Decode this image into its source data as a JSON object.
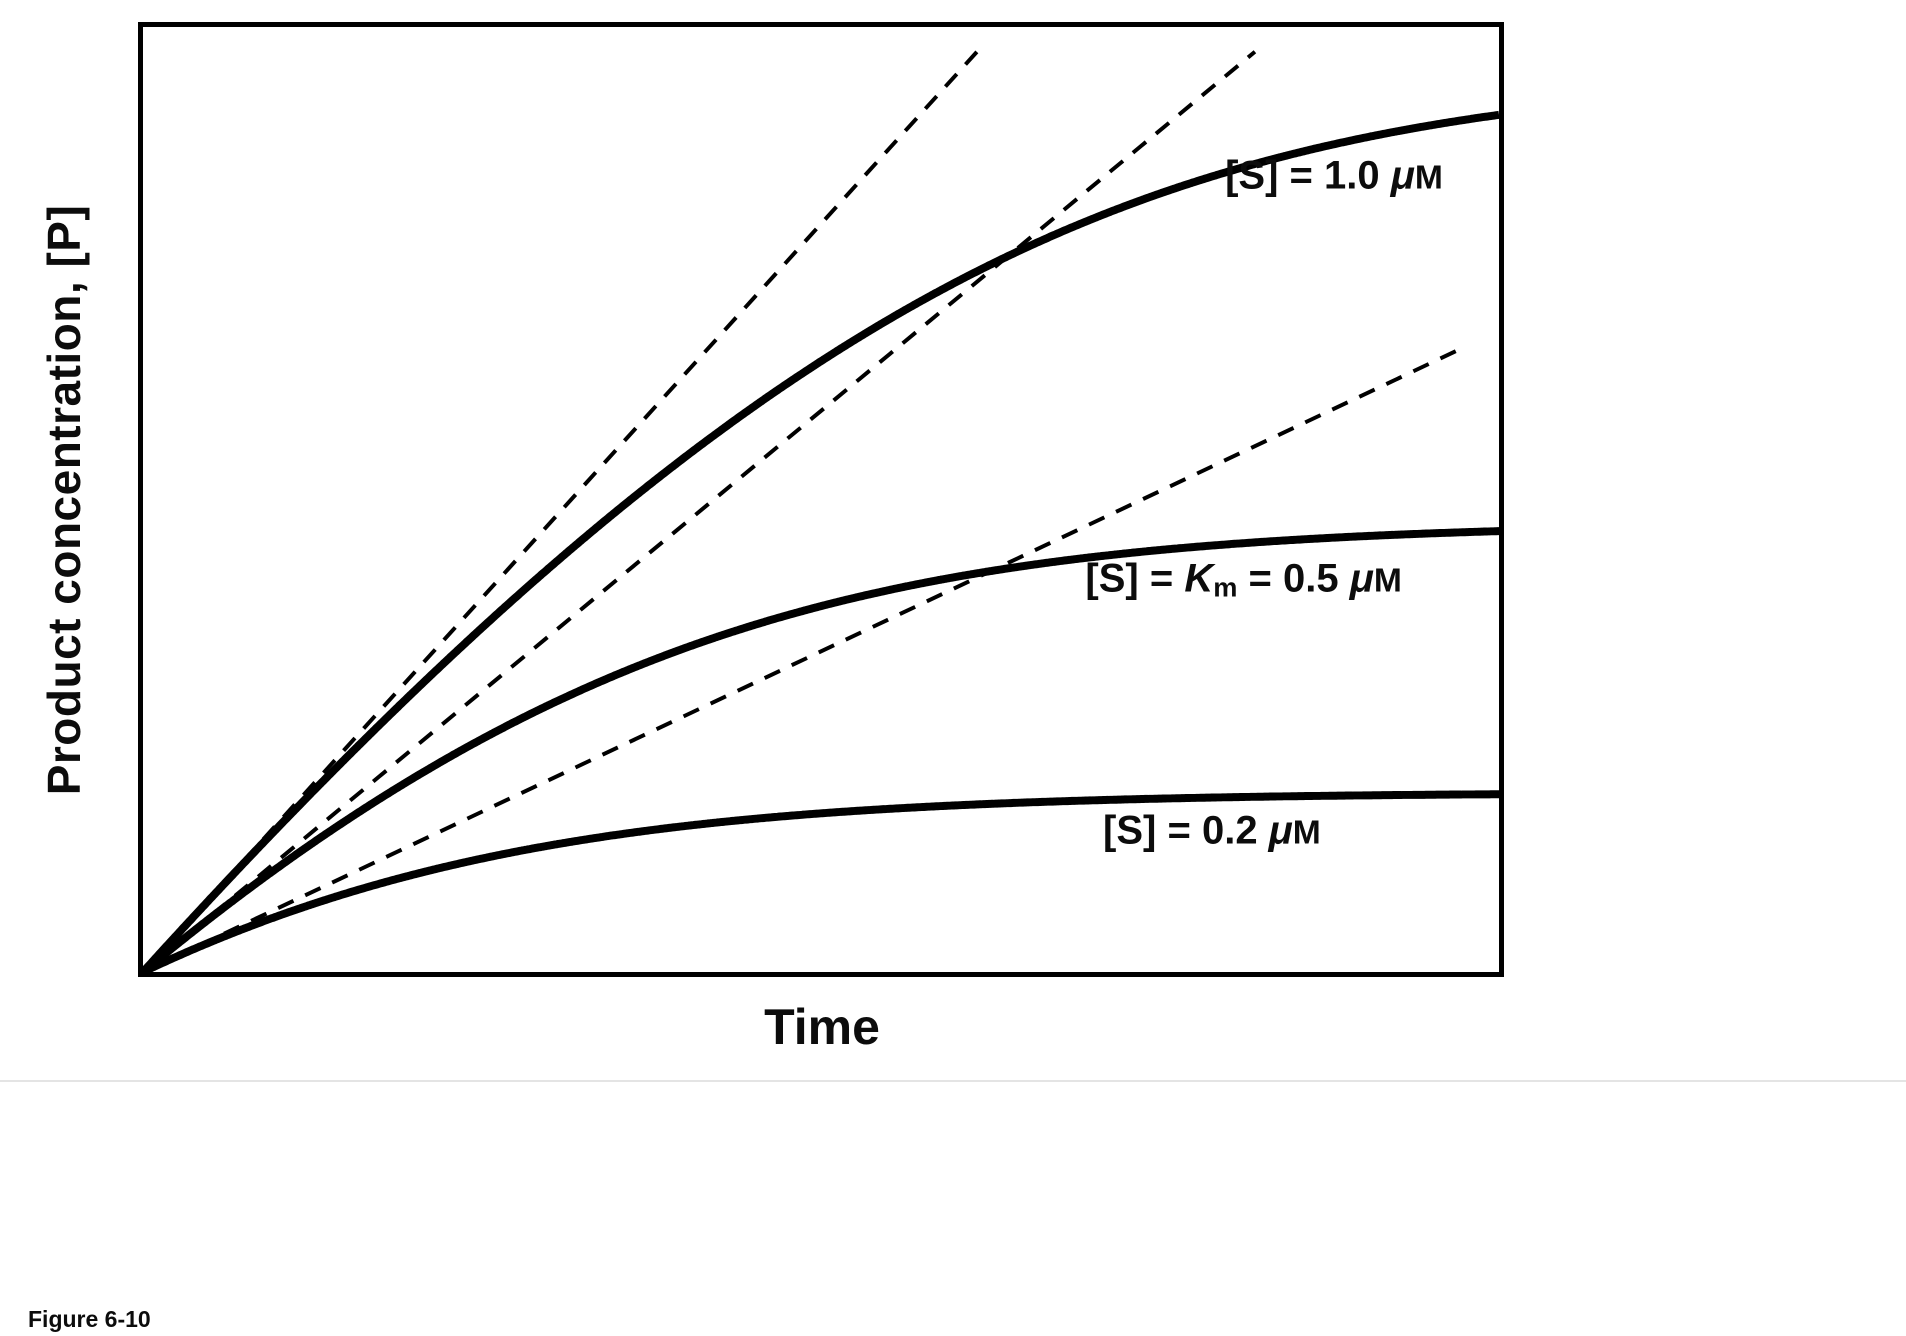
{
  "caption": "Figure 6-10",
  "chart_data": {
    "type": "line",
    "title": "",
    "xlabel": "Time",
    "ylabel": "Product concentration, [P]",
    "x_axis": {
      "range_rel": [
        0,
        1
      ],
      "ticks": "none"
    },
    "y_axis": {
      "range_uM": [
        0,
        1.05
      ],
      "ticks": "none",
      "unit": "μM",
      "full_scale_fraction_per_uM": 0.95
    },
    "model": {
      "name": "integrated Michaelis-Menten progress curve",
      "Vmax_uM_per_time": 2.5,
      "Km_uM": 0.5
    },
    "line_styles": {
      "progress_curve": "solid",
      "initial_velocity_tangent": "dashed"
    },
    "colors": {
      "line": "#000000",
      "background": "#ffffff"
    },
    "series": [
      {
        "label": "[S] = 1.0 μM",
        "S0_uM": 1.0,
        "plateau_uM": 1.0,
        "initial_velocity_uM_per_time": 1.67,
        "tangent_t_end": 0.62,
        "label_pos": {
          "x_frac": 0.798,
          "y_frac": 0.158
        }
      },
      {
        "label": "[S] = Km = 0.5 μM",
        "S0_uM": 0.5,
        "plateau_uM": 0.5,
        "initial_velocity_uM_per_time": 1.25,
        "tangent_t_end": 0.82,
        "label_pos": {
          "x_frac": 0.695,
          "y_frac": 0.585
        }
      },
      {
        "label": "[S] = 0.2 μM",
        "S0_uM": 0.2,
        "plateau_uM": 0.2,
        "initial_velocity_uM_per_time": 0.71,
        "tangent_t_end": 0.97,
        "label_pos": {
          "x_frac": 0.708,
          "y_frac": 0.851
        }
      }
    ]
  }
}
